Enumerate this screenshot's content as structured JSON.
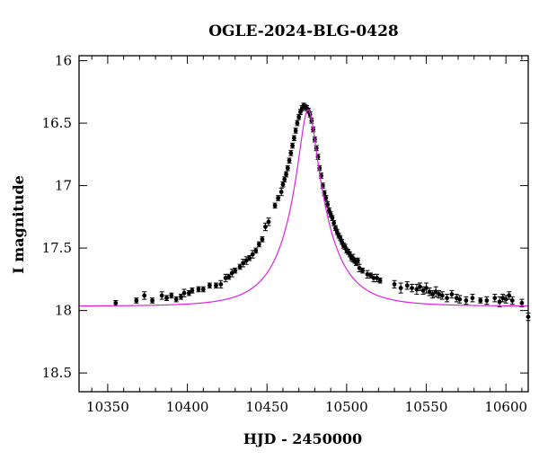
{
  "chart_data": {
    "type": "scatter",
    "title": "OGLE-2024-BLG-0428",
    "xlabel": "HJD - 2450000",
    "ylabel": "I magnitude",
    "xlim": [
      10332,
      10614
    ],
    "ylim": [
      18.65,
      15.96
    ],
    "y_inverted": true,
    "x_ticks": [
      "10350",
      "10400",
      "10450",
      "10500",
      "10550",
      "10600"
    ],
    "x_tick_values": [
      10350,
      10400,
      10450,
      10500,
      10550,
      10600
    ],
    "y_ticks": [
      "16",
      "16.5",
      "17",
      "17.5",
      "18",
      "18.5"
    ],
    "y_tick_values": [
      16,
      16.5,
      17,
      17.5,
      18,
      18.5
    ],
    "grid": false,
    "model": {
      "name": "",
      "color": "#e020e0",
      "t0": 10475.8,
      "u0": 0.2,
      "tE": 26.5,
      "baseline_mag": 17.965,
      "blend_fraction": 0.8
    },
    "series": [
      {
        "name": "",
        "color": "#000000",
        "marker": "circle",
        "error_bars": true,
        "x": [
          10355,
          10368,
          10373,
          10378,
          10384,
          10387,
          10390,
          10393,
          10396,
          10398,
          10401,
          10403,
          10407,
          10410,
          10414,
          10418,
          10421,
          10424,
          10426,
          10428,
          10430,
          10433,
          10435,
          10437,
          10439,
          10441,
          10443,
          10445,
          10447,
          10449,
          10451,
          10455,
          10457,
          10459,
          10460,
          10461,
          10462,
          10463,
          10464,
          10465,
          10466,
          10467,
          10468,
          10469,
          10470,
          10471,
          10472,
          10473,
          10474,
          10475,
          10476,
          10477,
          10478,
          10479,
          10480,
          10481,
          10482,
          10483,
          10484,
          10485,
          10486,
          10487,
          10488,
          10489,
          10490,
          10491,
          10492,
          10493,
          10494,
          10495,
          10496,
          10497,
          10498,
          10499,
          10500,
          10501,
          10502,
          10503,
          10504,
          10505,
          10506,
          10507,
          10508,
          10510,
          10513,
          10515,
          10517,
          10519,
          10521,
          10530,
          10534,
          10538,
          10541,
          10544,
          10546,
          10548,
          10550,
          10552,
          10554,
          10556,
          10558,
          10560,
          10563,
          10566,
          10569,
          10571,
          10575,
          10579,
          10584,
          10588,
          10593,
          10596,
          10598,
          10600,
          10602,
          10604,
          10610,
          10614
        ],
        "y": [
          17.94,
          17.92,
          17.88,
          17.92,
          17.88,
          17.9,
          17.88,
          17.91,
          17.89,
          17.86,
          17.86,
          17.84,
          17.83,
          17.83,
          17.8,
          17.8,
          17.79,
          17.74,
          17.73,
          17.7,
          17.68,
          17.65,
          17.62,
          17.6,
          17.58,
          17.55,
          17.52,
          17.47,
          17.43,
          17.33,
          17.29,
          17.16,
          17.1,
          17.05,
          16.99,
          16.95,
          16.91,
          16.86,
          16.8,
          16.74,
          16.68,
          16.62,
          16.56,
          16.5,
          16.45,
          16.41,
          16.38,
          16.36,
          16.37,
          16.38,
          16.4,
          16.43,
          16.48,
          16.55,
          16.63,
          16.7,
          16.77,
          16.86,
          16.92,
          17.0,
          17.06,
          17.1,
          17.15,
          17.2,
          17.23,
          17.26,
          17.3,
          17.34,
          17.37,
          17.4,
          17.42,
          17.45,
          17.48,
          17.49,
          17.52,
          17.53,
          17.55,
          17.58,
          17.58,
          17.6,
          17.62,
          17.6,
          17.66,
          17.68,
          17.71,
          17.72,
          17.74,
          17.74,
          17.76,
          17.79,
          17.82,
          17.8,
          17.82,
          17.83,
          17.81,
          17.84,
          17.82,
          17.85,
          17.87,
          17.85,
          17.87,
          17.88,
          17.9,
          17.87,
          17.9,
          17.91,
          17.92,
          17.9,
          17.92,
          17.92,
          17.9,
          17.93,
          17.9,
          17.91,
          17.88,
          17.92,
          17.94,
          18.05
        ],
        "errors": [
          0.02,
          0.02,
          0.03,
          0.02,
          0.03,
          0.02,
          0.02,
          0.02,
          0.02,
          0.03,
          0.02,
          0.02,
          0.02,
          0.02,
          0.02,
          0.02,
          0.03,
          0.03,
          0.02,
          0.03,
          0.02,
          0.02,
          0.03,
          0.03,
          0.02,
          0.03,
          0.02,
          0.02,
          0.02,
          0.03,
          0.03,
          0.02,
          0.02,
          0.03,
          0.02,
          0.02,
          0.02,
          0.02,
          0.02,
          0.02,
          0.02,
          0.02,
          0.02,
          0.02,
          0.02,
          0.02,
          0.02,
          0.02,
          0.02,
          0.02,
          0.02,
          0.02,
          0.02,
          0.02,
          0.02,
          0.02,
          0.02,
          0.02,
          0.02,
          0.02,
          0.02,
          0.02,
          0.02,
          0.02,
          0.02,
          0.02,
          0.02,
          0.02,
          0.02,
          0.02,
          0.02,
          0.02,
          0.02,
          0.02,
          0.02,
          0.02,
          0.02,
          0.02,
          0.03,
          0.02,
          0.02,
          0.02,
          0.03,
          0.02,
          0.03,
          0.02,
          0.03,
          0.03,
          0.02,
          0.03,
          0.04,
          0.03,
          0.03,
          0.04,
          0.03,
          0.03,
          0.04,
          0.03,
          0.03,
          0.04,
          0.03,
          0.03,
          0.03,
          0.03,
          0.03,
          0.03,
          0.03,
          0.03,
          0.02,
          0.03,
          0.03,
          0.04,
          0.03,
          0.03,
          0.03,
          0.03,
          0.03,
          0.03
        ]
      }
    ]
  }
}
